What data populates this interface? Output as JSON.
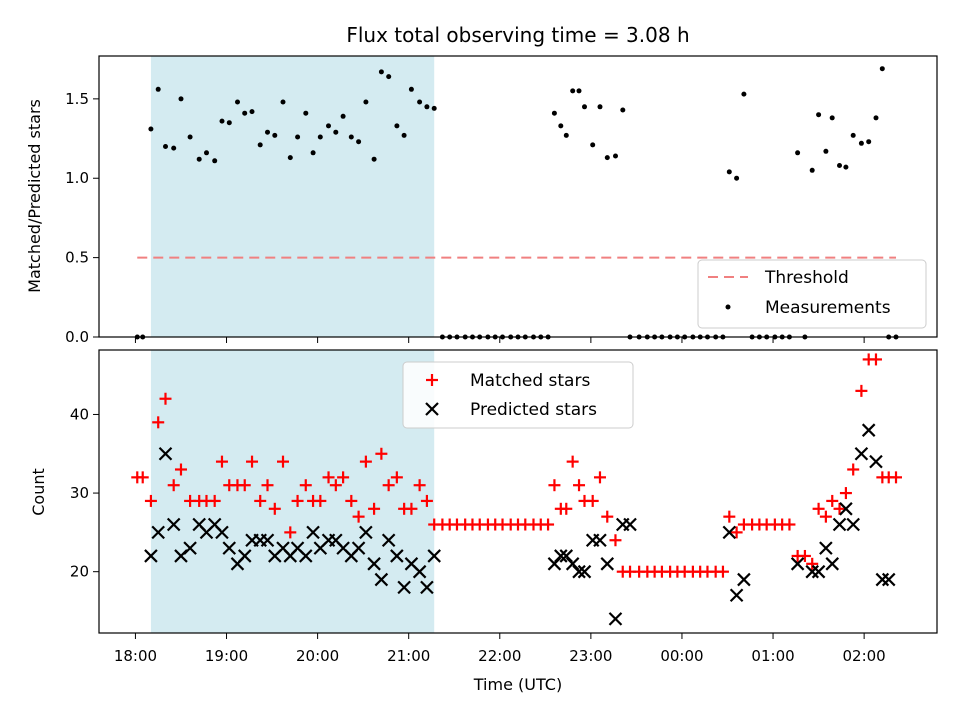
{
  "chart_data": [
    {
      "type": "scatter",
      "title": "Flux total observing time = 3.08 h",
      "ylabel": "Matched/Predicted stars",
      "xlabel": "",
      "xlim": [
        17.6,
        26.8
      ],
      "ylim": [
        0.0,
        1.77
      ],
      "y_ticks": [
        "0.0",
        "0.5",
        "1.0",
        "1.5"
      ],
      "y_tick_values": [
        0.0,
        0.5,
        1.0,
        1.5
      ],
      "grid": false,
      "legend_position": "lower-right",
      "shaded_interval": [
        18.17,
        21.28
      ],
      "shade_color": "#d4ebf1",
      "threshold": {
        "name": "Threshold",
        "y": 0.5,
        "x_range": [
          18.02,
          26.35
        ],
        "color": "#f08080"
      },
      "series": [
        {
          "name": "Measurements",
          "color": "#000000",
          "x": [
            18.02,
            18.08,
            18.17,
            18.25,
            18.33,
            18.42,
            18.5,
            18.6,
            18.7,
            18.78,
            18.87,
            18.95,
            19.03,
            19.12,
            19.2,
            19.28,
            19.37,
            19.45,
            19.53,
            19.62,
            19.7,
            19.78,
            19.87,
            19.95,
            20.03,
            20.12,
            20.2,
            20.28,
            20.37,
            20.45,
            20.53,
            20.62,
            20.7,
            20.78,
            20.87,
            20.95,
            21.03,
            21.12,
            21.2,
            21.28,
            21.37,
            21.45,
            21.53,
            21.62,
            21.7,
            21.78,
            21.87,
            21.95,
            22.03,
            22.12,
            22.2,
            22.28,
            22.37,
            22.45,
            22.53,
            22.6,
            22.67,
            22.73,
            22.8,
            22.87,
            22.93,
            23.02,
            23.1,
            23.18,
            23.27,
            23.35,
            23.43,
            23.53,
            23.62,
            23.7,
            23.78,
            23.87,
            23.95,
            24.03,
            24.12,
            24.2,
            24.28,
            24.37,
            24.45,
            24.52,
            24.6,
            24.68,
            24.77,
            24.85,
            24.93,
            25.02,
            25.1,
            25.18,
            25.27,
            25.35,
            25.43,
            25.5,
            25.58,
            25.65,
            25.73,
            25.8,
            25.88,
            25.97,
            26.05,
            26.13,
            26.2,
            26.27,
            26.35
          ],
          "y": [
            0.0,
            0.0,
            1.31,
            1.56,
            1.2,
            1.19,
            1.5,
            1.26,
            1.12,
            1.16,
            1.11,
            1.36,
            1.35,
            1.48,
            1.41,
            1.42,
            1.21,
            1.29,
            1.27,
            1.48,
            1.13,
            1.26,
            1.41,
            1.16,
            1.26,
            1.33,
            1.29,
            1.39,
            1.26,
            1.23,
            1.48,
            1.12,
            1.67,
            1.64,
            1.33,
            1.27,
            1.56,
            1.48,
            1.45,
            1.44,
            0.0,
            0.0,
            0.0,
            0.0,
            0.0,
            0.0,
            0.0,
            0.0,
            0.0,
            0.0,
            0.0,
            0.0,
            0.0,
            0.0,
            0.0,
            1.41,
            1.33,
            1.27,
            1.55,
            1.55,
            1.45,
            1.21,
            1.45,
            1.13,
            1.14,
            1.43,
            0.0,
            0.0,
            0.0,
            0.0,
            0.0,
            0.0,
            0.0,
            0.0,
            0.0,
            0.0,
            0.0,
            0.0,
            0.0,
            1.04,
            1.0,
            1.53,
            0.0,
            0.0,
            0.0,
            0.0,
            0.0,
            0.0,
            1.16,
            0.0,
            1.05,
            1.4,
            1.17,
            1.38,
            1.08,
            1.07,
            1.27,
            1.22,
            1.23,
            1.38,
            1.69,
            0.0,
            0.0
          ]
        }
      ]
    },
    {
      "type": "scatter",
      "title": "",
      "ylabel": "Count",
      "xlabel": "Time (UTC)",
      "xlim": [
        17.6,
        26.8
      ],
      "ylim": [
        12.2,
        48.2
      ],
      "y_ticks": [
        "20",
        "30",
        "40"
      ],
      "y_tick_values": [
        20,
        30,
        40
      ],
      "x_ticks": [
        "18:00",
        "19:00",
        "20:00",
        "21:00",
        "22:00",
        "23:00",
        "00:00",
        "01:00",
        "02:00"
      ],
      "x_tick_values": [
        18,
        19,
        20,
        21,
        22,
        23,
        24,
        25,
        26
      ],
      "grid": false,
      "legend_position": "upper-center",
      "shaded_interval": [
        18.17,
        21.28
      ],
      "shade_color": "#d4ebf1",
      "series": [
        {
          "name": "Matched stars",
          "marker": "plus",
          "color": "#ff0000",
          "x": [
            18.02,
            18.08,
            18.17,
            18.25,
            18.33,
            18.42,
            18.5,
            18.6,
            18.7,
            18.78,
            18.87,
            18.95,
            19.03,
            19.12,
            19.2,
            19.28,
            19.37,
            19.45,
            19.53,
            19.62,
            19.7,
            19.78,
            19.87,
            19.95,
            20.03,
            20.12,
            20.2,
            20.28,
            20.37,
            20.45,
            20.53,
            20.62,
            20.7,
            20.78,
            20.87,
            20.95,
            21.03,
            21.12,
            21.2,
            21.28,
            21.37,
            21.45,
            21.53,
            21.62,
            21.7,
            21.78,
            21.87,
            21.95,
            22.03,
            22.12,
            22.2,
            22.28,
            22.37,
            22.45,
            22.53,
            22.6,
            22.67,
            22.73,
            22.8,
            22.87,
            22.93,
            23.02,
            23.1,
            23.18,
            23.27,
            23.35,
            23.43,
            23.53,
            23.62,
            23.7,
            23.78,
            23.87,
            23.95,
            24.03,
            24.12,
            24.2,
            24.28,
            24.37,
            24.45,
            24.52,
            24.6,
            24.68,
            24.77,
            24.85,
            24.93,
            25.02,
            25.1,
            25.18,
            25.27,
            25.35,
            25.43,
            25.5,
            25.58,
            25.65,
            25.73,
            25.8,
            25.88,
            25.97,
            26.05,
            26.13,
            26.2,
            26.27,
            26.35
          ],
          "y": [
            32,
            32,
            29,
            39,
            42,
            31,
            33,
            29,
            29,
            29,
            29,
            34,
            31,
            31,
            31,
            34,
            29,
            31,
            28,
            34,
            25,
            29,
            31,
            29,
            29,
            32,
            31,
            32,
            29,
            27,
            34,
            28,
            35,
            31,
            32,
            28,
            28,
            31,
            29,
            26,
            26,
            26,
            26,
            26,
            26,
            26,
            26,
            26,
            26,
            26,
            26,
            26,
            26,
            26,
            26,
            31,
            28,
            28,
            34,
            31,
            29,
            29,
            32,
            27,
            24,
            20,
            20,
            20,
            20,
            20,
            20,
            20,
            20,
            20,
            20,
            20,
            20,
            20,
            20,
            27,
            25,
            26,
            26,
            26,
            26,
            26,
            26,
            26,
            22,
            22,
            21,
            28,
            27,
            29,
            28,
            30,
            33,
            43,
            47,
            47,
            32,
            32,
            32
          ]
        },
        {
          "name": "Predicted stars",
          "marker": "x",
          "color": "#000000",
          "x": [
            18.17,
            18.25,
            18.33,
            18.42,
            18.5,
            18.6,
            18.7,
            18.78,
            18.87,
            18.95,
            19.03,
            19.12,
            19.2,
            19.28,
            19.37,
            19.45,
            19.53,
            19.62,
            19.7,
            19.78,
            19.87,
            19.95,
            20.03,
            20.12,
            20.2,
            20.28,
            20.37,
            20.45,
            20.53,
            20.62,
            20.7,
            20.78,
            20.87,
            20.95,
            21.03,
            21.12,
            21.2,
            21.28,
            22.6,
            22.67,
            22.73,
            22.8,
            22.87,
            22.93,
            23.02,
            23.1,
            23.18,
            23.27,
            23.35,
            23.43,
            24.52,
            24.6,
            24.68,
            25.27,
            25.43,
            25.5,
            25.58,
            25.65,
            25.73,
            25.8,
            25.88,
            25.97,
            26.05,
            26.13,
            26.2,
            26.27
          ],
          "y": [
            22,
            25,
            35,
            26,
            22,
            23,
            26,
            25,
            26,
            25,
            23,
            21,
            22,
            24,
            24,
            24,
            22,
            23,
            22,
            23,
            22,
            25,
            23,
            24,
            24,
            23,
            22,
            23,
            25,
            21,
            19,
            24,
            22,
            18,
            21,
            20,
            18,
            22,
            21,
            22,
            22,
            21,
            20,
            20,
            24,
            24,
            21,
            14,
            26,
            26,
            25,
            17,
            19,
            21,
            20,
            20,
            23,
            21,
            26,
            28,
            26,
            35,
            38,
            34,
            19,
            19
          ]
        }
      ]
    }
  ]
}
